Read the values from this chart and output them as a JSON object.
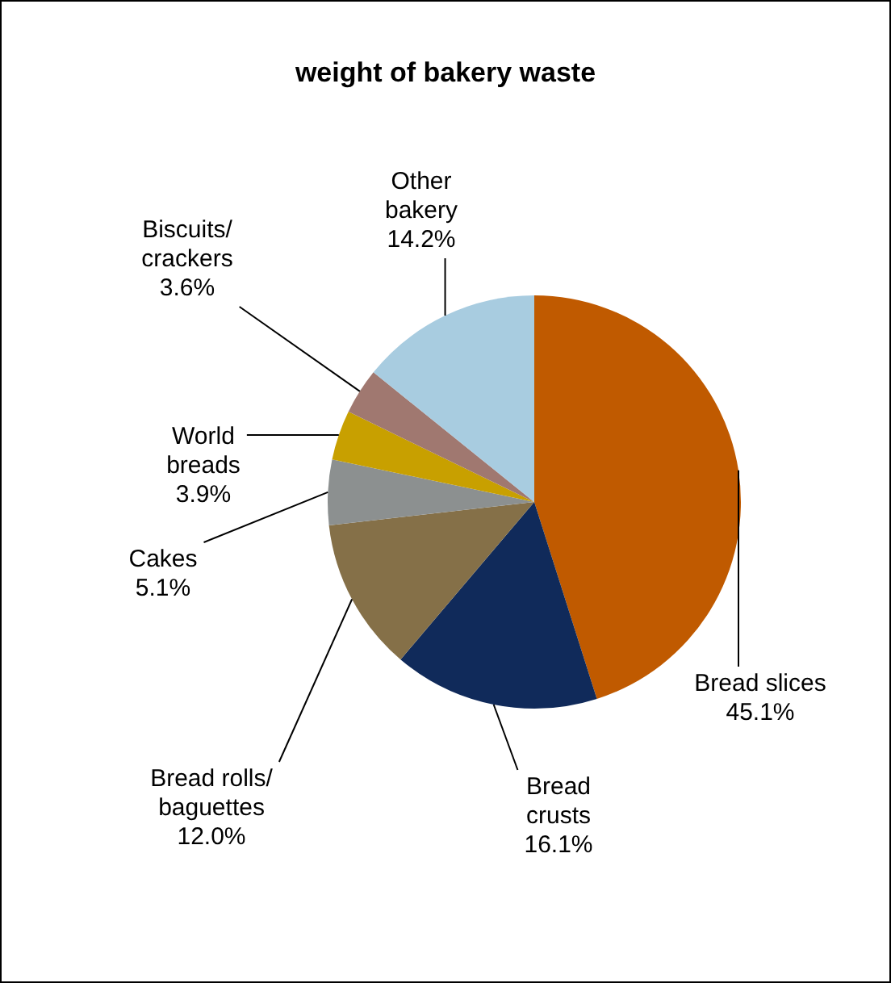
{
  "chart_data": {
    "type": "pie",
    "title": "weight of bakery waste",
    "categories": [
      "Bread slices",
      "Bread\ncrusts",
      "Bread rolls/\nbaguettes",
      "Cakes",
      "World\nbreads",
      "Biscuits/\ncrackers",
      "Other\nbakery"
    ],
    "values": [
      45.1,
      16.1,
      12.0,
      5.1,
      3.9,
      3.6,
      14.2
    ],
    "value_labels": [
      "45.1%",
      "16.1%",
      "12.0%",
      "5.1%",
      "3.9%",
      "3.6%",
      "14.2%"
    ],
    "colors": [
      "#c05a00",
      "#102a5a",
      "#857048",
      "#8c9090",
      "#c8a000",
      "#a07870",
      "#a8cce0"
    ],
    "legend": false
  }
}
